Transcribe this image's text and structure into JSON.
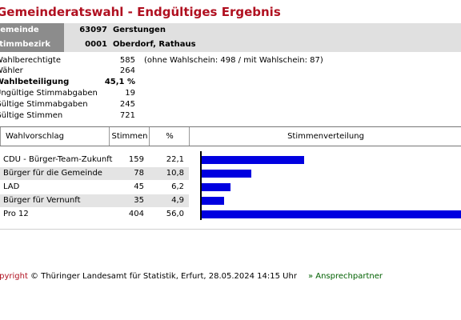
{
  "page": {
    "title": "Gemeinderatswahl - Endgültiges Ergebnis"
  },
  "header": {
    "gemeinde": {
      "label": "Gemeinde",
      "number": "63097",
      "name": "Gerstungen"
    },
    "stimmbezirk": {
      "label": "Stimmbezirk",
      "number": "0001",
      "name": "Oberdorf, Rathaus"
    }
  },
  "stats": [
    {
      "label": "Wahlberechtigte",
      "value": "585",
      "note": "(ohne Wahlschein: 498 / mit Wahlschein: 87)",
      "bold": false
    },
    {
      "label": "Wähler",
      "value": "264",
      "note": "",
      "bold": false
    },
    {
      "label": "Wahlbeteiligung",
      "value": "45,1 %",
      "note": "",
      "bold": true
    },
    {
      "label": "Ungültige Stimmabgaben",
      "value": "19",
      "note": "",
      "bold": false
    },
    {
      "label": "Gültige Stimmabgaben",
      "value": "245",
      "note": "",
      "bold": false
    },
    {
      "label": "Gültige Stimmen",
      "value": "721",
      "note": "",
      "bold": false
    }
  ],
  "table": {
    "headers": {
      "vorschlag": "Wahlvorschlag",
      "stimmen": "Stimmen",
      "prozent": "%",
      "verteilung": "Stimmenverteilung"
    },
    "rows": [
      {
        "name": "CDU - Bürger-Team-Zukunft",
        "votes": "159",
        "pct": "22,1"
      },
      {
        "name": "Bürger für die Gemeinde",
        "votes": "78",
        "pct": "10,8"
      },
      {
        "name": "LAD",
        "votes": "45",
        "pct": "6,2"
      },
      {
        "name": "Bürger für Vernunft",
        "votes": "35",
        "pct": "4,9"
      },
      {
        "name": "Pro 12",
        "votes": "404",
        "pct": "56,0"
      }
    ]
  },
  "chart_data": {
    "type": "bar",
    "orientation": "horizontal",
    "title": "Stimmenverteilung",
    "categories": [
      "CDU - Bürger-Team-Zukunft",
      "Bürger für die Gemeinde",
      "LAD",
      "Bürger für Vernunft",
      "Pro 12"
    ],
    "values": [
      22.1,
      10.8,
      6.2,
      4.9,
      56.0
    ],
    "bar_color": "#0000e0",
    "grid": false
  },
  "footer": {
    "copyright": "Copyright",
    "text": " © Thüringer Landesamt für Statistik, Erfurt, 28.05.2024 14:15 Uhr",
    "contact": "» Ansprechpartner"
  },
  "colors": {
    "accent": "#b01020",
    "link": "#006000",
    "header_bg": "#e0e0e0",
    "header_label_bg": "#8c8c8c"
  }
}
